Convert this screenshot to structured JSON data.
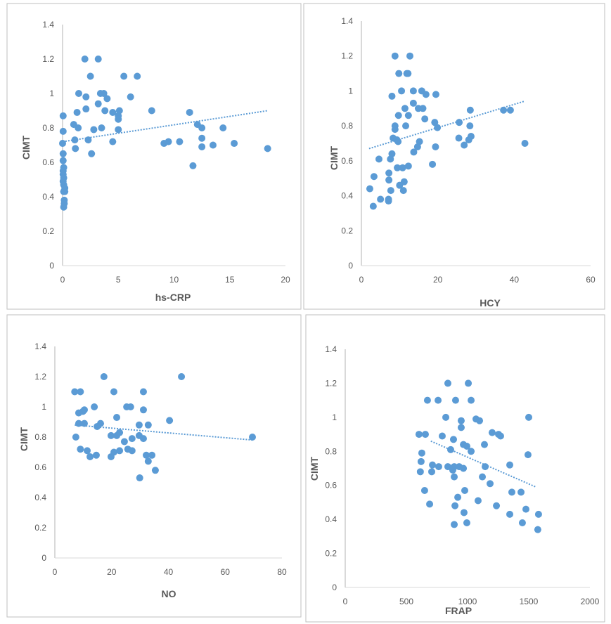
{
  "chart_data": [
    {
      "type": "scatter",
      "title": "",
      "xlabel": "hs-CRP",
      "ylabel": "CIMT",
      "xlim": [
        0,
        20
      ],
      "ylim": [
        0,
        1.4
      ],
      "xticks": [
        "0",
        "5",
        "10",
        "15",
        "20"
      ],
      "yticks": [
        "0",
        "0.2",
        "0.4",
        "0.6",
        "0.8",
        "1",
        "1.2",
        "1.4"
      ],
      "trendline": [
        [
          0,
          0.72
        ],
        [
          18.4,
          0.9
        ]
      ],
      "points": [
        [
          2.0,
          1.2
        ],
        [
          3.2,
          1.2
        ],
        [
          2.5,
          1.1
        ],
        [
          5.5,
          1.1
        ],
        [
          6.7,
          1.1
        ],
        [
          1.45,
          1.0
        ],
        [
          2.1,
          0.98
        ],
        [
          3.4,
          1.0
        ],
        [
          3.7,
          1.0
        ],
        [
          4.0,
          0.97
        ],
        [
          3.2,
          0.94
        ],
        [
          6.1,
          0.98
        ],
        [
          1.3,
          0.89
        ],
        [
          2.1,
          0.91
        ],
        [
          3.8,
          0.9
        ],
        [
          4.5,
          0.89
        ],
        [
          5.1,
          0.9
        ],
        [
          5.0,
          0.87
        ],
        [
          5.0,
          0.85
        ],
        [
          8.0,
          0.9
        ],
        [
          11.4,
          0.89
        ],
        [
          1.0,
          0.82
        ],
        [
          1.4,
          0.8
        ],
        [
          3.5,
          0.8
        ],
        [
          2.8,
          0.79
        ],
        [
          5.0,
          0.79
        ],
        [
          12.1,
          0.82
        ],
        [
          12.5,
          0.8
        ],
        [
          14.4,
          0.8
        ],
        [
          1.1,
          0.73
        ],
        [
          2.3,
          0.73
        ],
        [
          4.5,
          0.72
        ],
        [
          1.15,
          0.68
        ],
        [
          2.6,
          0.65
        ],
        [
          9.1,
          0.71
        ],
        [
          9.5,
          0.72
        ],
        [
          10.5,
          0.72
        ],
        [
          12.5,
          0.74
        ],
        [
          12.5,
          0.69
        ],
        [
          13.5,
          0.7
        ],
        [
          15.4,
          0.71
        ],
        [
          18.4,
          0.68
        ],
        [
          11.7,
          0.58
        ],
        [
          0.05,
          0.87
        ],
        [
          0.05,
          0.78
        ],
        [
          0.0,
          0.71
        ],
        [
          0.05,
          0.65
        ],
        [
          0.05,
          0.61
        ],
        [
          0.1,
          0.57
        ],
        [
          0.05,
          0.55
        ],
        [
          0.05,
          0.53
        ],
        [
          0.1,
          0.51
        ],
        [
          0.05,
          0.49
        ],
        [
          0.1,
          0.47
        ],
        [
          0.2,
          0.45
        ],
        [
          0.1,
          0.43
        ],
        [
          0.2,
          0.43
        ],
        [
          0.15,
          0.38
        ],
        [
          0.15,
          0.36
        ],
        [
          0.1,
          0.34
        ]
      ]
    },
    {
      "type": "scatter",
      "title": "",
      "xlabel": "HCY",
      "ylabel": "CIMT",
      "xlim": [
        0,
        60
      ],
      "ylim": [
        0,
        1.4
      ],
      "xticks": [
        "0",
        "20",
        "40",
        "60"
      ],
      "yticks": [
        "0",
        "0.2",
        "0.4",
        "0.6",
        "0.8",
        "1",
        "1.2",
        "1.4"
      ],
      "trendline": [
        [
          2,
          0.67
        ],
        [
          42.5,
          0.94
        ]
      ],
      "points": [
        [
          8.8,
          1.2
        ],
        [
          12.7,
          1.2
        ],
        [
          9.8,
          1.1
        ],
        [
          11.9,
          1.1
        ],
        [
          12.2,
          1.1
        ],
        [
          10.5,
          1.0
        ],
        [
          13.6,
          1.0
        ],
        [
          15.8,
          1.0
        ],
        [
          16.9,
          0.98
        ],
        [
          19.5,
          0.98
        ],
        [
          8.0,
          0.97
        ],
        [
          13.6,
          0.93
        ],
        [
          11.4,
          0.9
        ],
        [
          14.9,
          0.9
        ],
        [
          16.1,
          0.9
        ],
        [
          28.5,
          0.89
        ],
        [
          37.2,
          0.89
        ],
        [
          39.0,
          0.89
        ],
        [
          9.7,
          0.86
        ],
        [
          12.3,
          0.86
        ],
        [
          16.6,
          0.84
        ],
        [
          19.2,
          0.82
        ],
        [
          19.9,
          0.79
        ],
        [
          25.6,
          0.82
        ],
        [
          28.4,
          0.8
        ],
        [
          8.8,
          0.8
        ],
        [
          8.8,
          0.78
        ],
        [
          11.6,
          0.8
        ],
        [
          8.3,
          0.73
        ],
        [
          9.3,
          0.72
        ],
        [
          9.6,
          0.71
        ],
        [
          15.2,
          0.71
        ],
        [
          14.7,
          0.68
        ],
        [
          19.4,
          0.68
        ],
        [
          25.5,
          0.73
        ],
        [
          28.7,
          0.74
        ],
        [
          28.1,
          0.72
        ],
        [
          26.9,
          0.69
        ],
        [
          42.8,
          0.7
        ],
        [
          13.7,
          0.65
        ],
        [
          8.0,
          0.64
        ],
        [
          4.6,
          0.61
        ],
        [
          7.6,
          0.61
        ],
        [
          9.4,
          0.56
        ],
        [
          10.8,
          0.56
        ],
        [
          12.3,
          0.57
        ],
        [
          18.6,
          0.58
        ],
        [
          7.2,
          0.53
        ],
        [
          3.3,
          0.51
        ],
        [
          7.2,
          0.49
        ],
        [
          11.2,
          0.48
        ],
        [
          10.0,
          0.46
        ],
        [
          11.0,
          0.43
        ],
        [
          7.7,
          0.43
        ],
        [
          2.2,
          0.44
        ],
        [
          5.0,
          0.38
        ],
        [
          7.1,
          0.38
        ],
        [
          7.1,
          0.37
        ],
        [
          3.1,
          0.34
        ]
      ]
    },
    {
      "type": "scatter",
      "title": "",
      "xlabel": "NO",
      "ylabel": "CIMT",
      "xlim": [
        0,
        80
      ],
      "ylim": [
        0,
        1.4
      ],
      "xticks": [
        "0",
        "20",
        "40",
        "60",
        "80"
      ],
      "yticks": [
        "0",
        "0.2",
        "0.4",
        "0.6",
        "0.8",
        "1",
        "1.2",
        "1.4"
      ],
      "trendline": [
        [
          7,
          0.88
        ],
        [
          70,
          0.78
        ]
      ],
      "points": [
        [
          7.0,
          1.1
        ],
        [
          9.0,
          1.1
        ],
        [
          17.3,
          1.2
        ],
        [
          20.8,
          1.1
        ],
        [
          31.2,
          1.1
        ],
        [
          44.6,
          1.2
        ],
        [
          8.4,
          0.96
        ],
        [
          9.9,
          0.97
        ],
        [
          10.4,
          0.98
        ],
        [
          13.9,
          1.0
        ],
        [
          25.3,
          1.0
        ],
        [
          26.7,
          1.0
        ],
        [
          31.2,
          0.98
        ],
        [
          8.4,
          0.89
        ],
        [
          10.4,
          0.89
        ],
        [
          16.1,
          0.89
        ],
        [
          14.9,
          0.87
        ],
        [
          29.7,
          0.88
        ],
        [
          32.9,
          0.88
        ],
        [
          40.4,
          0.91
        ],
        [
          21.8,
          0.93
        ],
        [
          7.4,
          0.8
        ],
        [
          19.8,
          0.81
        ],
        [
          21.8,
          0.81
        ],
        [
          22.8,
          0.83
        ],
        [
          27.2,
          0.79
        ],
        [
          29.7,
          0.81
        ],
        [
          31.2,
          0.79
        ],
        [
          24.5,
          0.77
        ],
        [
          69.6,
          0.8
        ],
        [
          9.0,
          0.72
        ],
        [
          11.4,
          0.71
        ],
        [
          12.4,
          0.67
        ],
        [
          14.6,
          0.68
        ],
        [
          19.8,
          0.67
        ],
        [
          20.8,
          0.7
        ],
        [
          22.8,
          0.71
        ],
        [
          25.7,
          0.72
        ],
        [
          27.2,
          0.71
        ],
        [
          32.2,
          0.68
        ],
        [
          34.2,
          0.68
        ],
        [
          32.9,
          0.64
        ],
        [
          35.4,
          0.58
        ],
        [
          29.9,
          0.53
        ]
      ]
    },
    {
      "type": "scatter",
      "title": "",
      "xlabel": "FRAP",
      "ylabel": "CIMT",
      "xlim": [
        0,
        2000
      ],
      "ylim": [
        0,
        1.4
      ],
      "xticks": [
        "0",
        "500",
        "1000",
        "1500",
        "2000"
      ],
      "yticks": [
        "0",
        "0.2",
        "0.4",
        "0.6",
        "0.8",
        "1",
        "1.2",
        "1.4"
      ],
      "trendline": [
        [
          700,
          0.86
        ],
        [
          1560,
          0.59
        ]
      ],
      "points": [
        [
          839,
          1.2
        ],
        [
          1006,
          1.2
        ],
        [
          759,
          1.1
        ],
        [
          672,
          1.1
        ],
        [
          902,
          1.1
        ],
        [
          1029,
          1.1
        ],
        [
          822,
          1.0
        ],
        [
          1069,
          0.99
        ],
        [
          1098,
          0.98
        ],
        [
          948,
          0.98
        ],
        [
          948,
          0.94
        ],
        [
          1500,
          1.0
        ],
        [
          603,
          0.9
        ],
        [
          655,
          0.9
        ],
        [
          793,
          0.89
        ],
        [
          1201,
          0.91
        ],
        [
          1253,
          0.9
        ],
        [
          1270,
          0.89
        ],
        [
          885,
          0.87
        ],
        [
          1138,
          0.84
        ],
        [
          966,
          0.84
        ],
        [
          994,
          0.83
        ],
        [
          862,
          0.81
        ],
        [
          626,
          0.79
        ],
        [
          1029,
          0.8
        ],
        [
          1345,
          0.72
        ],
        [
          1494,
          0.78
        ],
        [
          713,
          0.72
        ],
        [
          764,
          0.71
        ],
        [
          839,
          0.71
        ],
        [
          891,
          0.71
        ],
        [
          931,
          0.71
        ],
        [
          966,
          0.7
        ],
        [
          1144,
          0.71
        ],
        [
          1121,
          0.65
        ],
        [
          1184,
          0.61
        ],
        [
          707,
          0.68
        ],
        [
          879,
          0.69
        ],
        [
          891,
          0.65
        ],
        [
          614,
          0.68
        ],
        [
          620,
          0.74
        ],
        [
          977,
          0.57
        ],
        [
          649,
          0.57
        ],
        [
          1362,
          0.56
        ],
        [
          1437,
          0.56
        ],
        [
          1086,
          0.51
        ],
        [
          920,
          0.53
        ],
        [
          690,
          0.49
        ],
        [
          897,
          0.48
        ],
        [
          1236,
          0.48
        ],
        [
          1477,
          0.46
        ],
        [
          971,
          0.44
        ],
        [
          1345,
          0.43
        ],
        [
          1580,
          0.43
        ],
        [
          994,
          0.38
        ],
        [
          891,
          0.37
        ],
        [
          1448,
          0.38
        ],
        [
          1574,
          0.34
        ]
      ]
    }
  ],
  "colors": {
    "marker": "#5b9bd5",
    "axis": "#d9d9d9",
    "text": "#595959",
    "border": "#bfbfbf"
  }
}
